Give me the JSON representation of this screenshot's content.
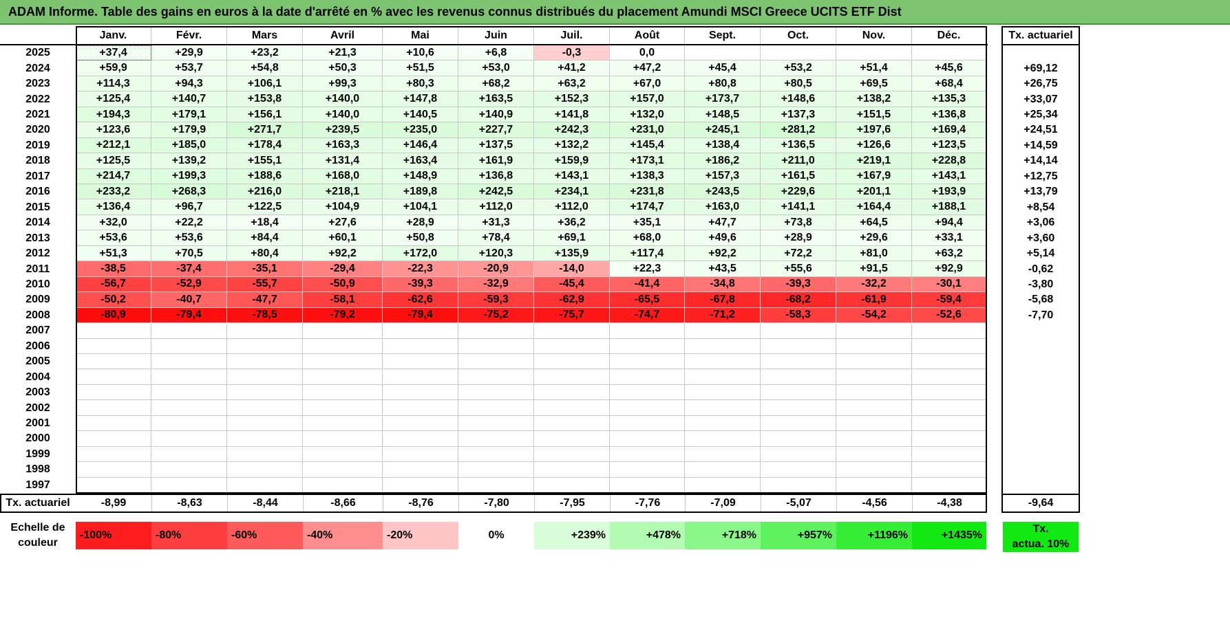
{
  "title": "ADAM Informe. Table des gains en euros à la date d'arrêté en % avec les revenus connus distribués du placement Amundi MSCI Greece UCITS ETF Dist",
  "months": [
    "Janv.",
    "Févr.",
    "Mars",
    "Avril",
    "Mai",
    "Juin",
    "Juil.",
    "Août",
    "Sept.",
    "Oct.",
    "Nov.",
    "Déc."
  ],
  "tx_header": "Tx. actuariel",
  "rows": [
    {
      "year": "2025",
      "values": [
        "+37,4",
        "+29,9",
        "+23,2",
        "+21,3",
        "+10,6",
        "+6,8",
        "-0,3",
        "0,0",
        "",
        "",
        "",
        ""
      ],
      "tx": ""
    },
    {
      "year": "2024",
      "values": [
        "+59,9",
        "+53,7",
        "+54,8",
        "+50,3",
        "+51,5",
        "+53,0",
        "+41,2",
        "+47,2",
        "+45,4",
        "+53,2",
        "+51,4",
        "+45,6"
      ],
      "tx": "+69,12"
    },
    {
      "year": "2023",
      "values": [
        "+114,3",
        "+94,3",
        "+106,1",
        "+99,3",
        "+80,3",
        "+68,2",
        "+63,2",
        "+67,0",
        "+80,8",
        "+80,5",
        "+69,5",
        "+68,4"
      ],
      "tx": "+26,75"
    },
    {
      "year": "2022",
      "values": [
        "+125,4",
        "+140,7",
        "+153,8",
        "+140,0",
        "+147,8",
        "+163,5",
        "+152,3",
        "+157,0",
        "+173,7",
        "+148,6",
        "+138,2",
        "+135,3"
      ],
      "tx": "+33,07"
    },
    {
      "year": "2021",
      "values": [
        "+194,3",
        "+179,1",
        "+156,1",
        "+140,0",
        "+140,5",
        "+140,9",
        "+141,8",
        "+132,0",
        "+148,5",
        "+137,3",
        "+151,5",
        "+136,8"
      ],
      "tx": "+25,34"
    },
    {
      "year": "2020",
      "values": [
        "+123,6",
        "+179,9",
        "+271,7",
        "+239,5",
        "+235,0",
        "+227,7",
        "+242,3",
        "+231,0",
        "+245,1",
        "+281,2",
        "+197,6",
        "+169,4"
      ],
      "tx": "+24,51"
    },
    {
      "year": "2019",
      "values": [
        "+212,1",
        "+185,0",
        "+178,4",
        "+163,3",
        "+146,4",
        "+137,5",
        "+132,2",
        "+145,4",
        "+138,4",
        "+136,5",
        "+126,6",
        "+123,5"
      ],
      "tx": "+14,59"
    },
    {
      "year": "2018",
      "values": [
        "+125,5",
        "+139,2",
        "+155,1",
        "+131,4",
        "+163,4",
        "+161,9",
        "+159,9",
        "+173,1",
        "+186,2",
        "+211,0",
        "+219,1",
        "+228,8"
      ],
      "tx": "+14,14"
    },
    {
      "year": "2017",
      "values": [
        "+214,7",
        "+199,3",
        "+188,6",
        "+168,0",
        "+148,9",
        "+136,8",
        "+143,1",
        "+138,3",
        "+157,3",
        "+161,5",
        "+167,9",
        "+143,1"
      ],
      "tx": "+12,75"
    },
    {
      "year": "2016",
      "values": [
        "+233,2",
        "+268,3",
        "+216,0",
        "+218,1",
        "+189,8",
        "+242,5",
        "+234,1",
        "+231,8",
        "+243,5",
        "+229,6",
        "+201,1",
        "+193,9"
      ],
      "tx": "+13,79"
    },
    {
      "year": "2015",
      "values": [
        "+136,4",
        "+96,7",
        "+122,5",
        "+104,9",
        "+104,1",
        "+112,0",
        "+112,0",
        "+174,7",
        "+163,0",
        "+141,1",
        "+164,4",
        "+188,1"
      ],
      "tx": "+8,54"
    },
    {
      "year": "2014",
      "values": [
        "+32,0",
        "+22,2",
        "+18,4",
        "+27,6",
        "+28,9",
        "+31,3",
        "+36,2",
        "+35,1",
        "+47,7",
        "+73,8",
        "+64,5",
        "+94,4"
      ],
      "tx": "+3,06"
    },
    {
      "year": "2013",
      "values": [
        "+53,6",
        "+53,6",
        "+84,4",
        "+60,1",
        "+50,8",
        "+78,4",
        "+69,1",
        "+68,0",
        "+49,6",
        "+28,9",
        "+29,6",
        "+33,1"
      ],
      "tx": "+3,60"
    },
    {
      "year": "2012",
      "values": [
        "+51,3",
        "+70,5",
        "+80,4",
        "+92,2",
        "+172,0",
        "+120,3",
        "+135,9",
        "+117,4",
        "+92,2",
        "+72,2",
        "+81,0",
        "+63,2"
      ],
      "tx": "+5,14"
    },
    {
      "year": "2011",
      "values": [
        "-38,5",
        "-37,4",
        "-35,1",
        "-29,4",
        "-22,3",
        "-20,9",
        "-14,0",
        "+22,3",
        "+43,5",
        "+55,6",
        "+91,5",
        "+92,9"
      ],
      "tx": "-0,62"
    },
    {
      "year": "2010",
      "values": [
        "-56,7",
        "-52,9",
        "-55,7",
        "-50,9",
        "-39,3",
        "-32,9",
        "-45,4",
        "-41,4",
        "-34,8",
        "-39,3",
        "-32,2",
        "-30,1"
      ],
      "tx": "-3,80"
    },
    {
      "year": "2009",
      "values": [
        "-50,2",
        "-40,7",
        "-47,7",
        "-58,1",
        "-62,6",
        "-59,3",
        "-62,9",
        "-65,5",
        "-67,8",
        "-68,2",
        "-61,9",
        "-59,4"
      ],
      "tx": "-5,68"
    },
    {
      "year": "2008",
      "values": [
        "-80,9",
        "-79,4",
        "-78,5",
        "-79,2",
        "-79,4",
        "-75,2",
        "-75,7",
        "-74,7",
        "-71,2",
        "-58,3",
        "-54,2",
        "-52,6"
      ],
      "tx": "-7,70"
    },
    {
      "year": "2007",
      "values": [
        "",
        "",
        "",
        "",
        "",
        "",
        "",
        "",
        "",
        "",
        "",
        ""
      ],
      "tx": ""
    },
    {
      "year": "2006",
      "values": [
        "",
        "",
        "",
        "",
        "",
        "",
        "",
        "",
        "",
        "",
        "",
        ""
      ],
      "tx": ""
    },
    {
      "year": "2005",
      "values": [
        "",
        "",
        "",
        "",
        "",
        "",
        "",
        "",
        "",
        "",
        "",
        ""
      ],
      "tx": ""
    },
    {
      "year": "2004",
      "values": [
        "",
        "",
        "",
        "",
        "",
        "",
        "",
        "",
        "",
        "",
        "",
        ""
      ],
      "tx": ""
    },
    {
      "year": "2003",
      "values": [
        "",
        "",
        "",
        "",
        "",
        "",
        "",
        "",
        "",
        "",
        "",
        ""
      ],
      "tx": ""
    },
    {
      "year": "2002",
      "values": [
        "",
        "",
        "",
        "",
        "",
        "",
        "",
        "",
        "",
        "",
        "",
        ""
      ],
      "tx": ""
    },
    {
      "year": "2001",
      "values": [
        "",
        "",
        "",
        "",
        "",
        "",
        "",
        "",
        "",
        "",
        "",
        ""
      ],
      "tx": ""
    },
    {
      "year": "2000",
      "values": [
        "",
        "",
        "",
        "",
        "",
        "",
        "",
        "",
        "",
        "",
        "",
        ""
      ],
      "tx": ""
    },
    {
      "year": "1999",
      "values": [
        "",
        "",
        "",
        "",
        "",
        "",
        "",
        "",
        "",
        "",
        "",
        ""
      ],
      "tx": ""
    },
    {
      "year": "1998",
      "values": [
        "",
        "",
        "",
        "",
        "",
        "",
        "",
        "",
        "",
        "",
        "",
        ""
      ],
      "tx": ""
    },
    {
      "year": "1997",
      "values": [
        "",
        "",
        "",
        "",
        "",
        "",
        "",
        "",
        "",
        "",
        "",
        ""
      ],
      "tx": ""
    }
  ],
  "footer": {
    "label": "Tx. actuariel",
    "values": [
      "-8,99",
      "-8,63",
      "-8,44",
      "-8,66",
      "-8,76",
      "-7,80",
      "-7,95",
      "-7,76",
      "-7,09",
      "-5,07",
      "-4,56",
      "-4,38"
    ],
    "tx": "-9,64"
  },
  "scale": {
    "label_line1": "Echelle de",
    "label_line2": "couleur",
    "items": [
      {
        "text": "-100%",
        "color": "#ff1c1c"
      },
      {
        "text": "-80%",
        "color": "#ff3f3f"
      },
      {
        "text": "-60%",
        "color": "#ff5a5a"
      },
      {
        "text": "-40%",
        "color": "#ff8e8e"
      },
      {
        "text": "-20%",
        "color": "#ffc4c4"
      },
      {
        "text": "0%",
        "color": "#ffffff"
      },
      {
        "text": "+239%",
        "color": "#d8fdd8"
      },
      {
        "text": "+478%",
        "color": "#b3fbb3"
      },
      {
        "text": "+718%",
        "color": "#88f788"
      },
      {
        "text": "+957%",
        "color": "#5ef25e"
      },
      {
        "text": "+1196%",
        "color": "#36ee36"
      },
      {
        "text": "+1435%",
        "color": "#12e812"
      }
    ],
    "tx_line1": "Tx.",
    "tx_line2": "actua. 10%",
    "tx_color": "#12e812"
  },
  "colors": {
    "title_bg": "#7cc46f",
    "positive_scale": [
      "#f7fff7",
      "#d2fad2"
    ],
    "negative_scale": [
      "#ffd0d0",
      "#ff0d0d"
    ]
  }
}
